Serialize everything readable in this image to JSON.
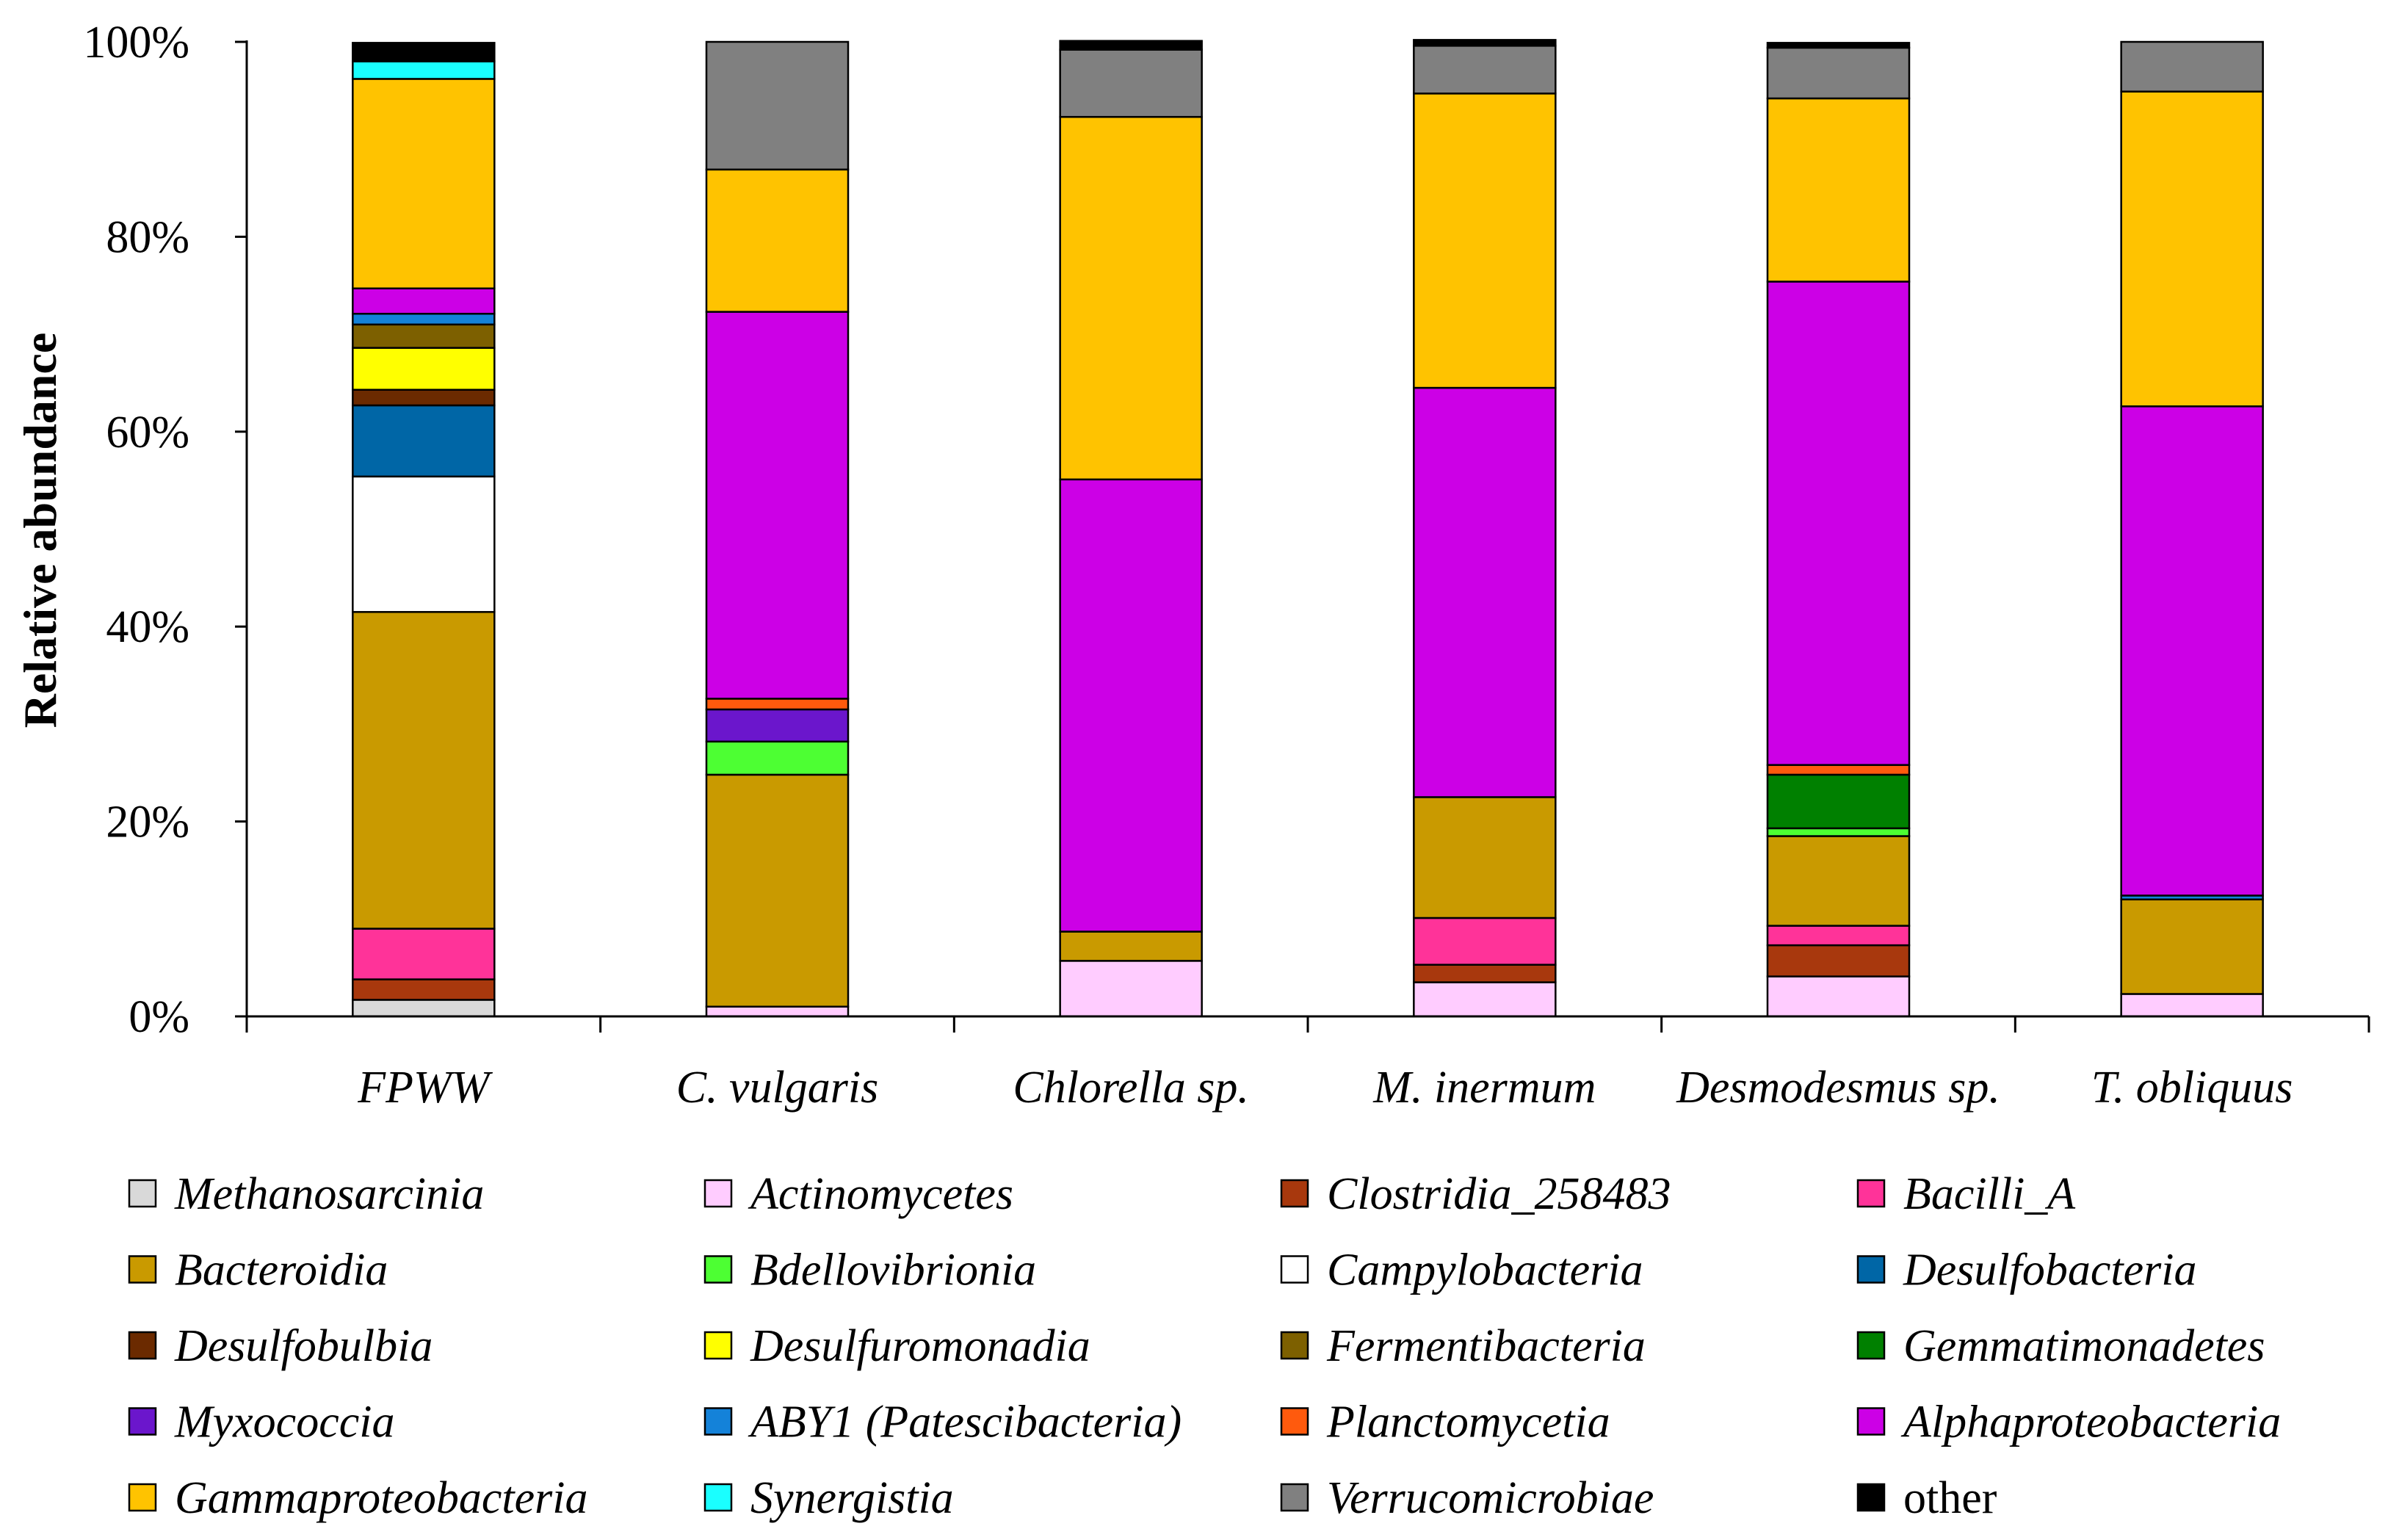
{
  "chart_data": {
    "type": "bar",
    "stacked": true,
    "ylabel": "Relative abundance",
    "xlabel": "",
    "ylim": [
      0,
      100
    ],
    "ytick_labels": [
      "0%",
      "20%",
      "40%",
      "60%",
      "80%",
      "100%"
    ],
    "categories": [
      "FPWW",
      "C. vulgaris",
      "Chlorella sp.",
      "M. inermum",
      "Desmodesmus sp.",
      "T. obliquus"
    ],
    "series": [
      {
        "name": "Methanosarcinia",
        "color": "#d9d9d9",
        "values": [
          1.7,
          0,
          0,
          0,
          0,
          0
        ]
      },
      {
        "name": "Actinomycetes",
        "color": "#ffccff",
        "values": [
          0,
          1.0,
          5.7,
          3.5,
          4.1,
          2.3
        ]
      },
      {
        "name": "Clostridia_258483",
        "color": "#a8380d",
        "values": [
          2.1,
          0,
          0,
          1.8,
          3.2,
          0
        ]
      },
      {
        "name": "Bacilli_A",
        "color": "#ff3399",
        "values": [
          5.2,
          0,
          0,
          4.8,
          2.0,
          0
        ]
      },
      {
        "name": "Bacteroidia",
        "color": "#c99a00",
        "values": [
          32.5,
          23.8,
          3.0,
          12.4,
          9.2,
          9.7
        ]
      },
      {
        "name": "Bdellovibrionia",
        "color": "#4dff33",
        "values": [
          0,
          3.4,
          0,
          0,
          0.8,
          0
        ]
      },
      {
        "name": "Campylobacteria",
        "color": "#ffffff",
        "values": [
          13.9,
          0,
          0,
          0,
          0,
          0
        ]
      },
      {
        "name": "Desulfobacteria",
        "color": "#0066a6",
        "values": [
          7.3,
          0,
          0,
          0,
          0,
          0
        ]
      },
      {
        "name": "Desulfobulbia",
        "color": "#6b2a00",
        "values": [
          1.6,
          0,
          0,
          0,
          0,
          0
        ]
      },
      {
        "name": "Desulfuromonadia",
        "color": "#ffff00",
        "values": [
          4.3,
          0,
          0,
          0,
          0,
          0
        ]
      },
      {
        "name": "Fermentibacteria",
        "color": "#7d6000",
        "values": [
          2.4,
          0,
          0,
          0,
          0,
          0
        ]
      },
      {
        "name": "Gemmatimonadetes",
        "color": "#008000",
        "values": [
          0,
          0,
          0,
          0,
          5.5,
          0
        ]
      },
      {
        "name": "Myxococcia",
        "color": "#6b16cc",
        "values": [
          0,
          3.3,
          0,
          0,
          0,
          0
        ]
      },
      {
        "name": "ABY1 (Patescibacteria)",
        "color": "#1482d9",
        "values": [
          1.1,
          0,
          0,
          0,
          0,
          0.4
        ]
      },
      {
        "name": "Planctomycetia",
        "color": "#ff5a0d",
        "values": [
          0,
          1.1,
          0,
          0,
          1.0,
          0
        ]
      },
      {
        "name": "Alphaproteobacteria",
        "color": "#cc00e6",
        "values": [
          2.6,
          39.7,
          46.4,
          42.0,
          49.6,
          50.2
        ]
      },
      {
        "name": "Gammaproteobacteria",
        "color": "#ffc300",
        "values": [
          21.5,
          14.6,
          37.2,
          30.2,
          18.8,
          32.3
        ]
      },
      {
        "name": "Synergistia",
        "color": "#1affff",
        "values": [
          1.8,
          0,
          0,
          0,
          0,
          0
        ]
      },
      {
        "name": "Verrucomicrobiae",
        "color": "#808080",
        "values": [
          0,
          13.1,
          6.9,
          4.9,
          5.2,
          5.1
        ]
      },
      {
        "name": "other",
        "color": "#000000",
        "values": [
          1.9,
          0,
          0.9,
          0.6,
          0.5,
          0
        ]
      }
    ],
    "legend_placement": "bottom",
    "legend_columns": 4
  }
}
